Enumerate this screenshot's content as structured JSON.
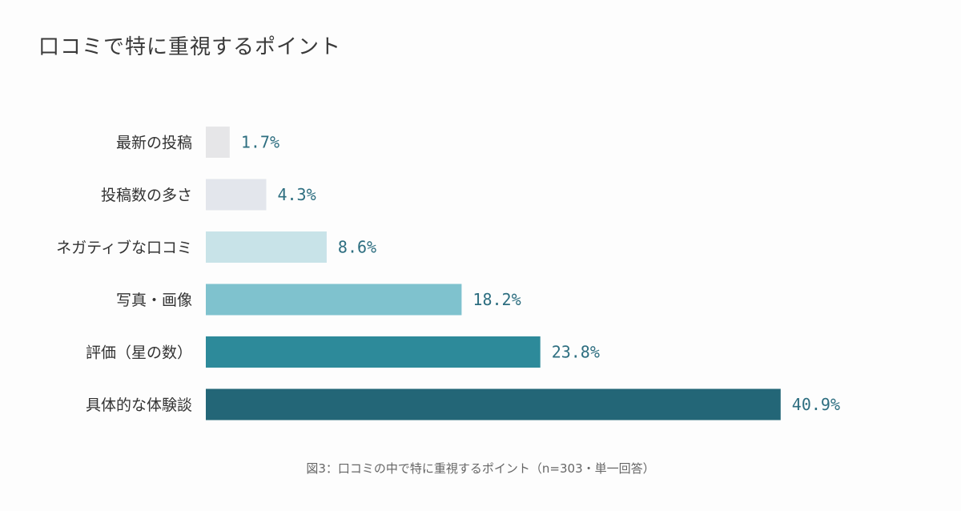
{
  "chart_data": {
    "type": "bar",
    "orientation": "horizontal",
    "title": "口コミで特に重視するポイント",
    "categories": [
      "最新の投稿",
      "投稿数の多さ",
      "ネガティブな口コミ",
      "写真・画像",
      "評価（星の数）",
      "具体的な体験談"
    ],
    "values": [
      1.7,
      4.3,
      8.6,
      18.2,
      23.8,
      40.9
    ],
    "value_labels": [
      "1.7%",
      "4.3%",
      "8.6%",
      "18.2%",
      "23.8%",
      "40.9%"
    ],
    "colors": [
      "#e6e6e8",
      "#e3e6ec",
      "#c8e3e8",
      "#7fc2ce",
      "#2d8a9a",
      "#236677"
    ],
    "grid": false,
    "legend": "none",
    "caption": "図3：口コミの中で特に重視するポイント（n=303・単一回答）"
  }
}
